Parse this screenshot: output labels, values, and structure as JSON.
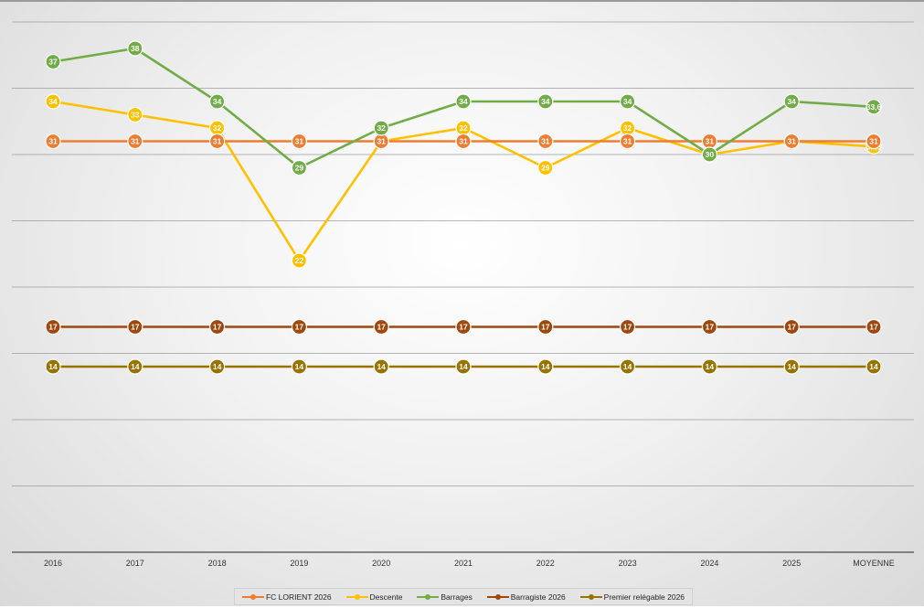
{
  "chart_data": {
    "type": "line",
    "title": "",
    "xlabel": "",
    "ylabel": "",
    "categories": [
      "2016",
      "2017",
      "2018",
      "2019",
      "2020",
      "2021",
      "2022",
      "2023",
      "2024",
      "2025",
      "MOYENNE"
    ],
    "ylim": [
      0,
      40
    ],
    "grid": true,
    "legend_position": "bottom",
    "series": [
      {
        "name": "FC LORIENT 2026",
        "color": "#ED7D31",
        "values": [
          31,
          31,
          31,
          31,
          31,
          31,
          31,
          31,
          31,
          31,
          31
        ],
        "labels": [
          "31",
          "31",
          "31",
          "31",
          "31",
          "31",
          "31",
          "31",
          "31",
          "31",
          "31"
        ]
      },
      {
        "name": "Descente",
        "color": "#FFC000",
        "values": [
          34,
          33,
          32,
          22,
          31,
          32,
          29,
          32,
          30,
          31,
          30.6
        ],
        "labels": [
          "34",
          "33",
          "32",
          "22",
          "31",
          "32",
          "29",
          "32",
          "",
          "31",
          "30,6"
        ]
      },
      {
        "name": "Barrages",
        "color": "#70AD47",
        "values": [
          37,
          38,
          34,
          29,
          32,
          34,
          34,
          34,
          30,
          34,
          33.6
        ],
        "labels": [
          "37",
          "38",
          "34",
          "29",
          "32",
          "34",
          "34",
          "34",
          "30",
          "34",
          "33,6"
        ]
      },
      {
        "name": "Barragiste 2026",
        "color": "#9E480E",
        "values": [
          17,
          17,
          17,
          17,
          17,
          17,
          17,
          17,
          17,
          17,
          17
        ],
        "labels": [
          "17",
          "17",
          "17",
          "17",
          "17",
          "17",
          "17",
          "17",
          "17",
          "17",
          "17"
        ]
      },
      {
        "name": "Premier relégable 2026",
        "color": "#997300",
        "values": [
          14,
          14,
          14,
          14,
          14,
          14,
          14,
          14,
          14,
          14,
          14
        ],
        "labels": [
          "14",
          "14",
          "14",
          "14",
          "14",
          "14",
          "14",
          "14",
          "14",
          "14",
          "14"
        ]
      }
    ],
    "draw_order": [
      1,
      0,
      2,
      3,
      4
    ]
  }
}
